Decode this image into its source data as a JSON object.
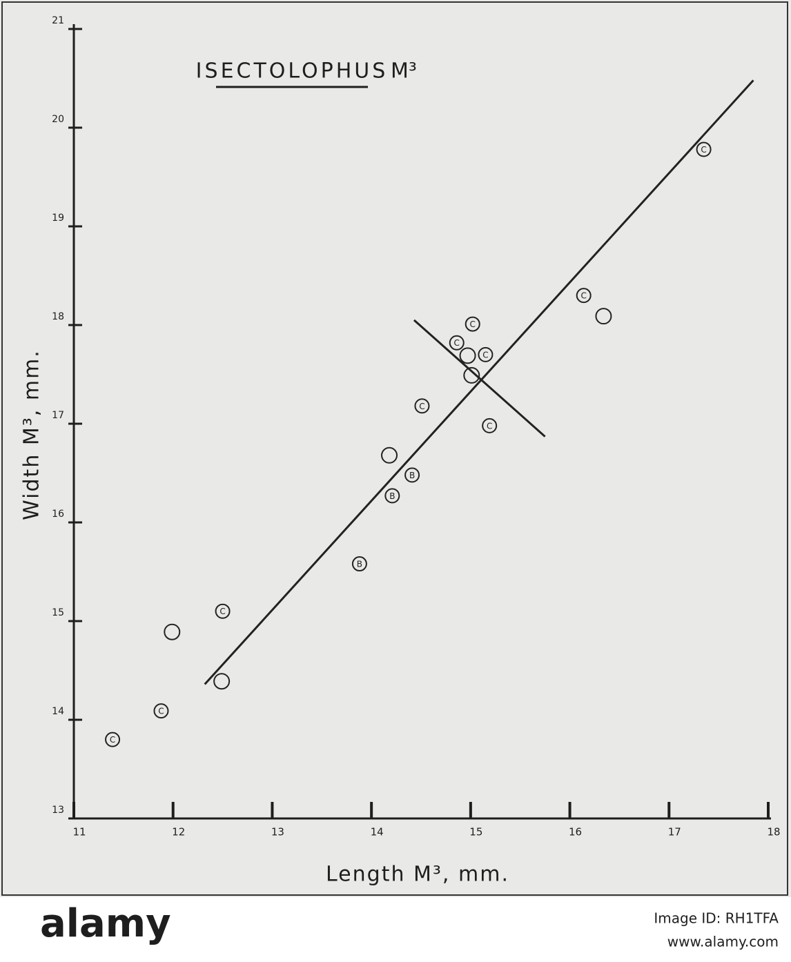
{
  "chart_data": {
    "type": "scatter",
    "title": "ISECTOLOPHUS",
    "title_suffix": "M³",
    "xlabel": "Length M³, mm.",
    "ylabel": "Width M³, mm.",
    "x": [
      11.39,
      11.88,
      11.99,
      12.49,
      12.5,
      13.88,
      14.21,
      14.41,
      14.18,
      14.51,
      15.19,
      15.01,
      14.97,
      15.15,
      14.86,
      15.02,
      16.14,
      16.34,
      17.35
    ],
    "y": [
      13.8,
      14.09,
      14.89,
      14.39,
      15.1,
      15.58,
      16.27,
      16.48,
      16.68,
      17.18,
      16.98,
      17.49,
      17.69,
      17.7,
      17.82,
      18.01,
      18.3,
      18.09,
      19.78
    ],
    "marker_labels": [
      "C",
      "C",
      null,
      null,
      "C",
      "B",
      "B",
      "B",
      null,
      "C",
      "C",
      null,
      null,
      "C",
      "C",
      "C",
      "C",
      null,
      "C"
    ],
    "color": "#222222",
    "lines": [
      {
        "x": [
          12.32,
          17.85
        ],
        "y": [
          14.36,
          20.48
        ]
      },
      {
        "x": [
          14.43,
          15.75
        ],
        "y": [
          18.05,
          16.87
        ]
      }
    ],
    "xlim": [
      11,
      18
    ],
    "ylim": [
      13,
      21
    ],
    "xticks": [
      11,
      12,
      13,
      14,
      15,
      16,
      17,
      18
    ],
    "yticks": [
      13,
      14,
      15,
      16,
      17,
      18,
      19,
      20,
      21
    ]
  },
  "footer": {
    "logo": "alamy",
    "image_id": "Image ID: RH1TFA",
    "url": "www.alamy.com"
  }
}
